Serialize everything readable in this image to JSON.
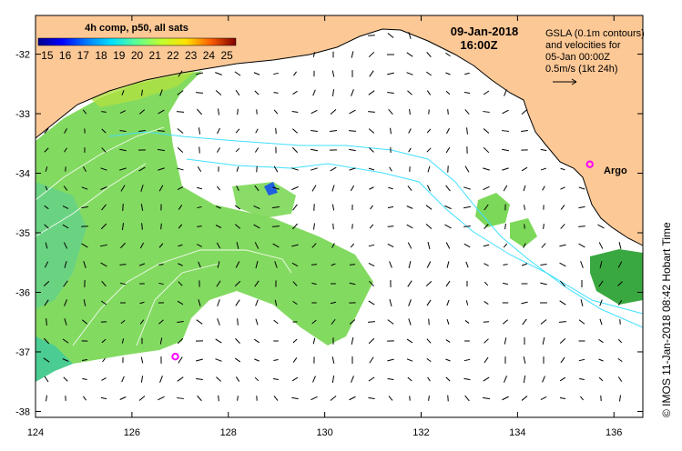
{
  "map": {
    "lon_range": [
      124,
      136.6
    ],
    "lat_range": [
      -38.1,
      -31.35
    ],
    "lon_ticks": [
      124,
      126,
      128,
      130,
      132,
      134,
      136
    ],
    "lat_ticks": [
      -32,
      -33,
      -34,
      -35,
      -36,
      -37,
      -38
    ],
    "lon_tick_labels": [
      "124",
      "126",
      "128",
      "130",
      "132",
      "134",
      "136"
    ],
    "lat_tick_labels": [
      "-32",
      "-33",
      "-34",
      "-35",
      "-36",
      "-37",
      "-38"
    ]
  },
  "legend": {
    "title": "4h comp, p50, all sats",
    "colorbar_labels": [
      "15",
      "16",
      "17",
      "18",
      "19",
      "20",
      "21",
      "22",
      "23",
      "24",
      "25"
    ],
    "colorbar_range": [
      14.5,
      25.5
    ]
  },
  "date": {
    "day": "09-Jan-2018",
    "time": "16:00Z"
  },
  "gsla_note": {
    "line1": "GSLA (0.1m contours)",
    "line2": "and velocities for",
    "line3": "05-Jan 00:00Z",
    "line4": "0.5m/s (1kt 24h)"
  },
  "argo": {
    "label": "Argo",
    "floats": [
      {
        "lon": 135.5,
        "lat": -33.85
      },
      {
        "lon": 126.9,
        "lat": -37.08
      }
    ]
  },
  "credit": "© IMOS 11-Jan-2018 08:42 Hobart Time",
  "colors": {
    "land": "#fcc896",
    "ocean": "#ffffff",
    "contour": "#40e0ff",
    "sst_main": "#7cd858",
    "argo": "#ff00ff",
    "arrow": "#000000"
  }
}
